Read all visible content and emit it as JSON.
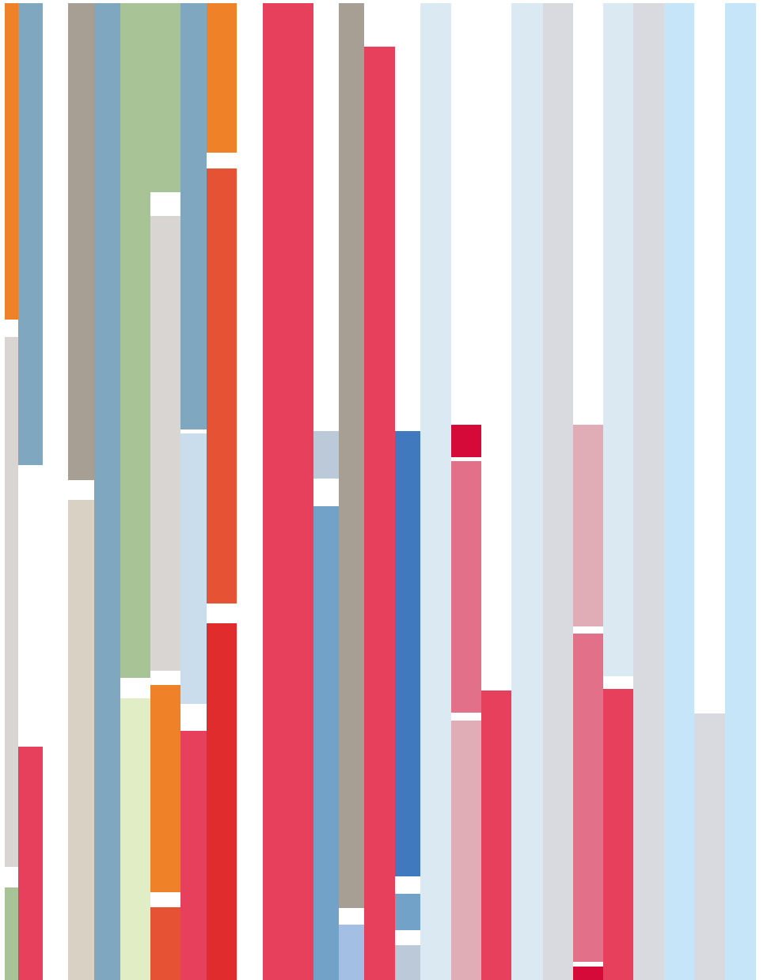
{
  "palette": {
    "orange": "#EF8129",
    "steel_blue": "#7FA7BF",
    "light_gray": "#D8D5D3",
    "sage_green": "#A8C497",
    "pale_green": "#E0EDC5",
    "taupe": "#A79F93",
    "beige": "#D9D1C4",
    "red_orange": "#E65234",
    "red": "#E02C2C",
    "pink_red": "#E6405C",
    "powder_blue": "#CADDEC",
    "mid_blue": "#73A2C8",
    "gray_blue": "#BCC9D9",
    "sky_blue": "#A3BFE4",
    "royal_blue": "#4179BF",
    "very_light_blue": "#DAE9F2",
    "crimson": "#D50A39",
    "rose": "#E27088",
    "dusty_pink": "#E0ACB6",
    "cool_gray": "#D9DADF",
    "baby_blue": "#C6E5F8"
  }
}
